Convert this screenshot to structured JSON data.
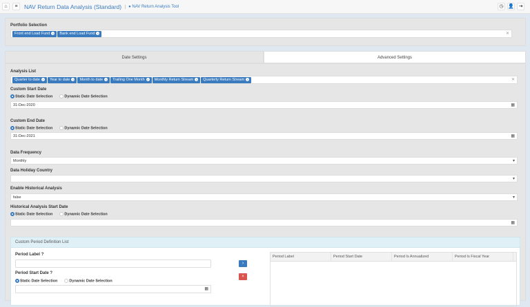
{
  "header": {
    "title": "NAV Return Data Analysis (Standard)",
    "tool_link": "NAV Return Analysis Tool",
    "icons": [
      "home-icon",
      "menu-icon",
      "history-icon",
      "user-icon",
      "logout-icon"
    ]
  },
  "portfolio": {
    "label": "Portfolio Selection",
    "tags": [
      "Front end Load Fund",
      "Bank end Load Fund"
    ]
  },
  "tabs": [
    "Date Settings",
    "Advanced Settings"
  ],
  "analysis": {
    "label": "Analysis List",
    "tags": [
      "Quarter to date",
      "Year to date",
      "Month to date",
      "Trailing One Month",
      "Monthly Return Stream",
      "Quarterly Return Stream"
    ]
  },
  "radio": {
    "static": "Static Date Selection",
    "dynamic": "Dynamic Date Selection"
  },
  "start": {
    "label": "Custom Start Date",
    "value": "31-Dec-2020"
  },
  "end": {
    "label": "Custom End Date",
    "value": "31-Dec-2021"
  },
  "frequency": {
    "label": "Data Frequency",
    "value": "Monthly"
  },
  "holiday": {
    "label": "Data Holiday Country",
    "value": ""
  },
  "historical": {
    "label": "Enable Historical Analysis",
    "value": "false"
  },
  "hist_start": {
    "label": "Historical Analysis Start Date",
    "value": ""
  },
  "custom": {
    "title": "Custom Period Definition List",
    "period_label": "Period Label",
    "period_start": "Period Start Date",
    "add": "›",
    "remove": "×",
    "columns": [
      "Period Label",
      "Period Start Date",
      "Period Is Annualized",
      "Period Is Fiscal Year"
    ]
  },
  "colors": {
    "accent": "#3a7bbf",
    "danger": "#d9534f",
    "panel": "#e6e6e6"
  }
}
